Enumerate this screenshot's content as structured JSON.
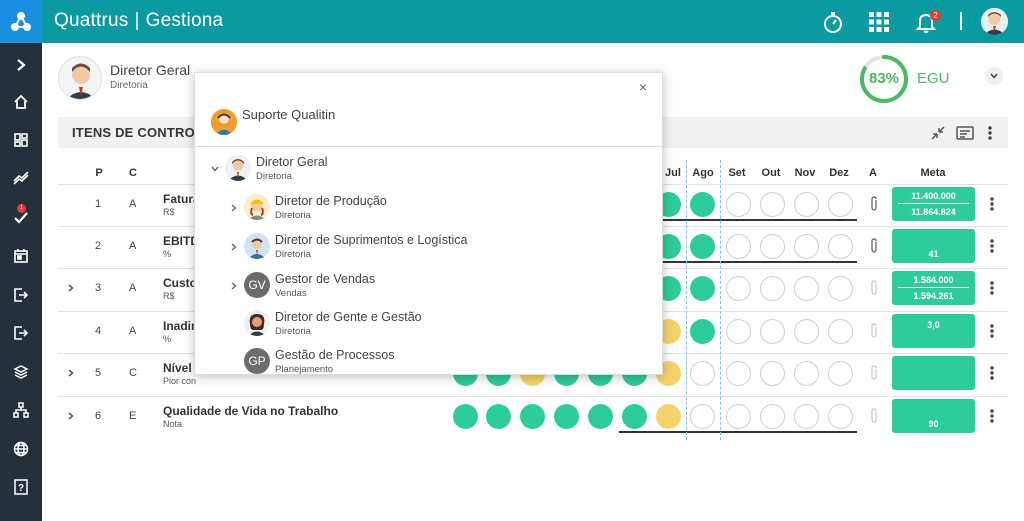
{
  "header": {
    "brand": "Quattrus",
    "separator": "|",
    "app": "Gestiona",
    "notification_count": "2"
  },
  "sidebar": {
    "items": [
      {
        "icon": "chevron-right-icon"
      },
      {
        "icon": "home-icon"
      },
      {
        "icon": "dashboard-icon"
      },
      {
        "icon": "trend-icon"
      },
      {
        "icon": "tasks-icon",
        "badge": "1"
      },
      {
        "icon": "calendar-icon"
      },
      {
        "icon": "login-icon"
      },
      {
        "icon": "logout-icon"
      },
      {
        "icon": "layers-icon"
      },
      {
        "icon": "hierarchy-icon"
      },
      {
        "icon": "globe-icon"
      },
      {
        "icon": "help-icon"
      }
    ]
  },
  "profile": {
    "name": "Diretor Geral",
    "sub": "Diretoria"
  },
  "egu": {
    "percent_label": "83%",
    "percent": 83,
    "label": "EGU",
    "color": "#4cb963"
  },
  "section": {
    "title": "ITENS DE CONTROLE"
  },
  "columns": {
    "p": "P",
    "c": "C",
    "months": [
      "Jul",
      "Ago",
      "Set",
      "Out",
      "Nov",
      "Dez"
    ],
    "a": "A",
    "meta": "Meta"
  },
  "rows": [
    {
      "p": "1",
      "c": "A",
      "name": "Faturamento",
      "unit": "R$",
      "meta1": "11.400.000",
      "meta2": "11.864.824"
    },
    {
      "p": "2",
      "c": "A",
      "name": "EBITDA",
      "unit": "%",
      "meta_low": "41"
    },
    {
      "p": "3",
      "c": "A",
      "name": "Custo",
      "unit": "R$",
      "meta1": "1.584.000",
      "meta2": "1.594.261"
    },
    {
      "p": "4",
      "c": "A",
      "name": "Inadimplência",
      "unit": "%",
      "meta_mid": "3,0"
    },
    {
      "p": "5",
      "c": "C",
      "name": "Nível de",
      "unit": "Pior con"
    },
    {
      "p": "6",
      "c": "E",
      "name": "Qualidade de Vida no Trabalho",
      "unit": "Nota",
      "meta_low": "90"
    }
  ],
  "popup": {
    "close": "×",
    "header": "Suporte Qualitin",
    "tree": [
      {
        "name": "Diretor Geral",
        "sub": "Diretoria"
      },
      {
        "name": "Diretor de Produção",
        "sub": "Diretoria"
      },
      {
        "name": "Diretor de Suprimentos e Logística",
        "sub": "Diretoria"
      },
      {
        "name": "Gestor de Vendas",
        "sub": "Vendas",
        "initials": "GV"
      },
      {
        "name": "Diretor de Gente e Gestão",
        "sub": "Diretoria"
      },
      {
        "name": "Gestão de Processos",
        "sub": "Planejamento",
        "initials": "GP"
      }
    ]
  },
  "colors": {
    "topbar": "#0b9aa2",
    "sidebar": "#25303b",
    "green": "#2ecc9a",
    "yellow": "#f5d36b"
  }
}
